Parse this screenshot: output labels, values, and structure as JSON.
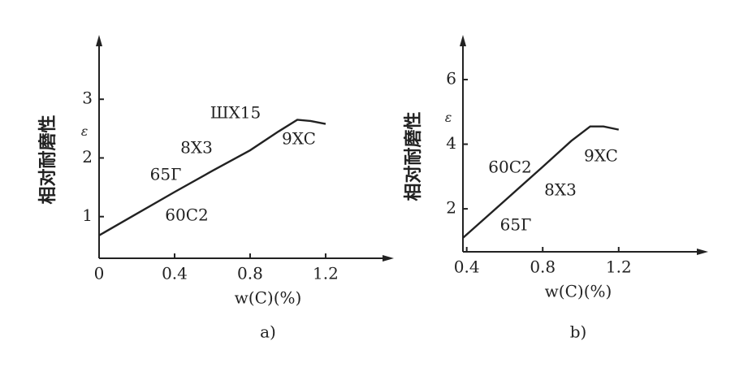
{
  "chart_data": [
    {
      "type": "line",
      "caption": "a)",
      "ylabel": "相对耐磨性",
      "ysymbol": "ε",
      "xlabel": "w(C)(%)",
      "xlim": [
        0,
        1.51
      ],
      "ylim": [
        0.29,
        3.93
      ],
      "xticks": [
        {
          "value": 0,
          "label": "0"
        },
        0.4,
        0.8,
        1.2
      ],
      "yticks": [
        1,
        2,
        3
      ],
      "x": [
        0,
        0.2,
        0.4,
        0.6,
        0.8,
        0.95,
        1.05,
        1.12,
        1.2
      ],
      "series": [
        {
          "color": "#222222",
          "values": [
            0.68,
            1.05,
            1.42,
            1.78,
            2.13,
            2.45,
            2.65,
            2.63,
            2.58
          ]
        }
      ],
      "annotations": [
        "ШX15",
        "9XC",
        "8X3",
        "65Г",
        "60C2"
      ]
    },
    {
      "type": "line",
      "caption": "b)",
      "ylabel": "相对耐磨性",
      "ysymbol": "ε",
      "xlabel": "w(C)(%)",
      "xlim": [
        0.38,
        1.62
      ],
      "ylim": [
        0.67,
        7.08
      ],
      "xticks": [
        0.4,
        0.8,
        1.2
      ],
      "yticks": [
        2,
        4,
        6
      ],
      "x": [
        0.38,
        0.6,
        0.8,
        0.95,
        1.05,
        1.12,
        1.2
      ],
      "series": [
        {
          "color": "#222222",
          "values": [
            1.1,
            2.25,
            3.3,
            4.1,
            4.55,
            4.55,
            4.45
          ]
        }
      ],
      "annotations": [
        "60C2",
        "9XC",
        "8X3",
        "65Г"
      ]
    }
  ]
}
